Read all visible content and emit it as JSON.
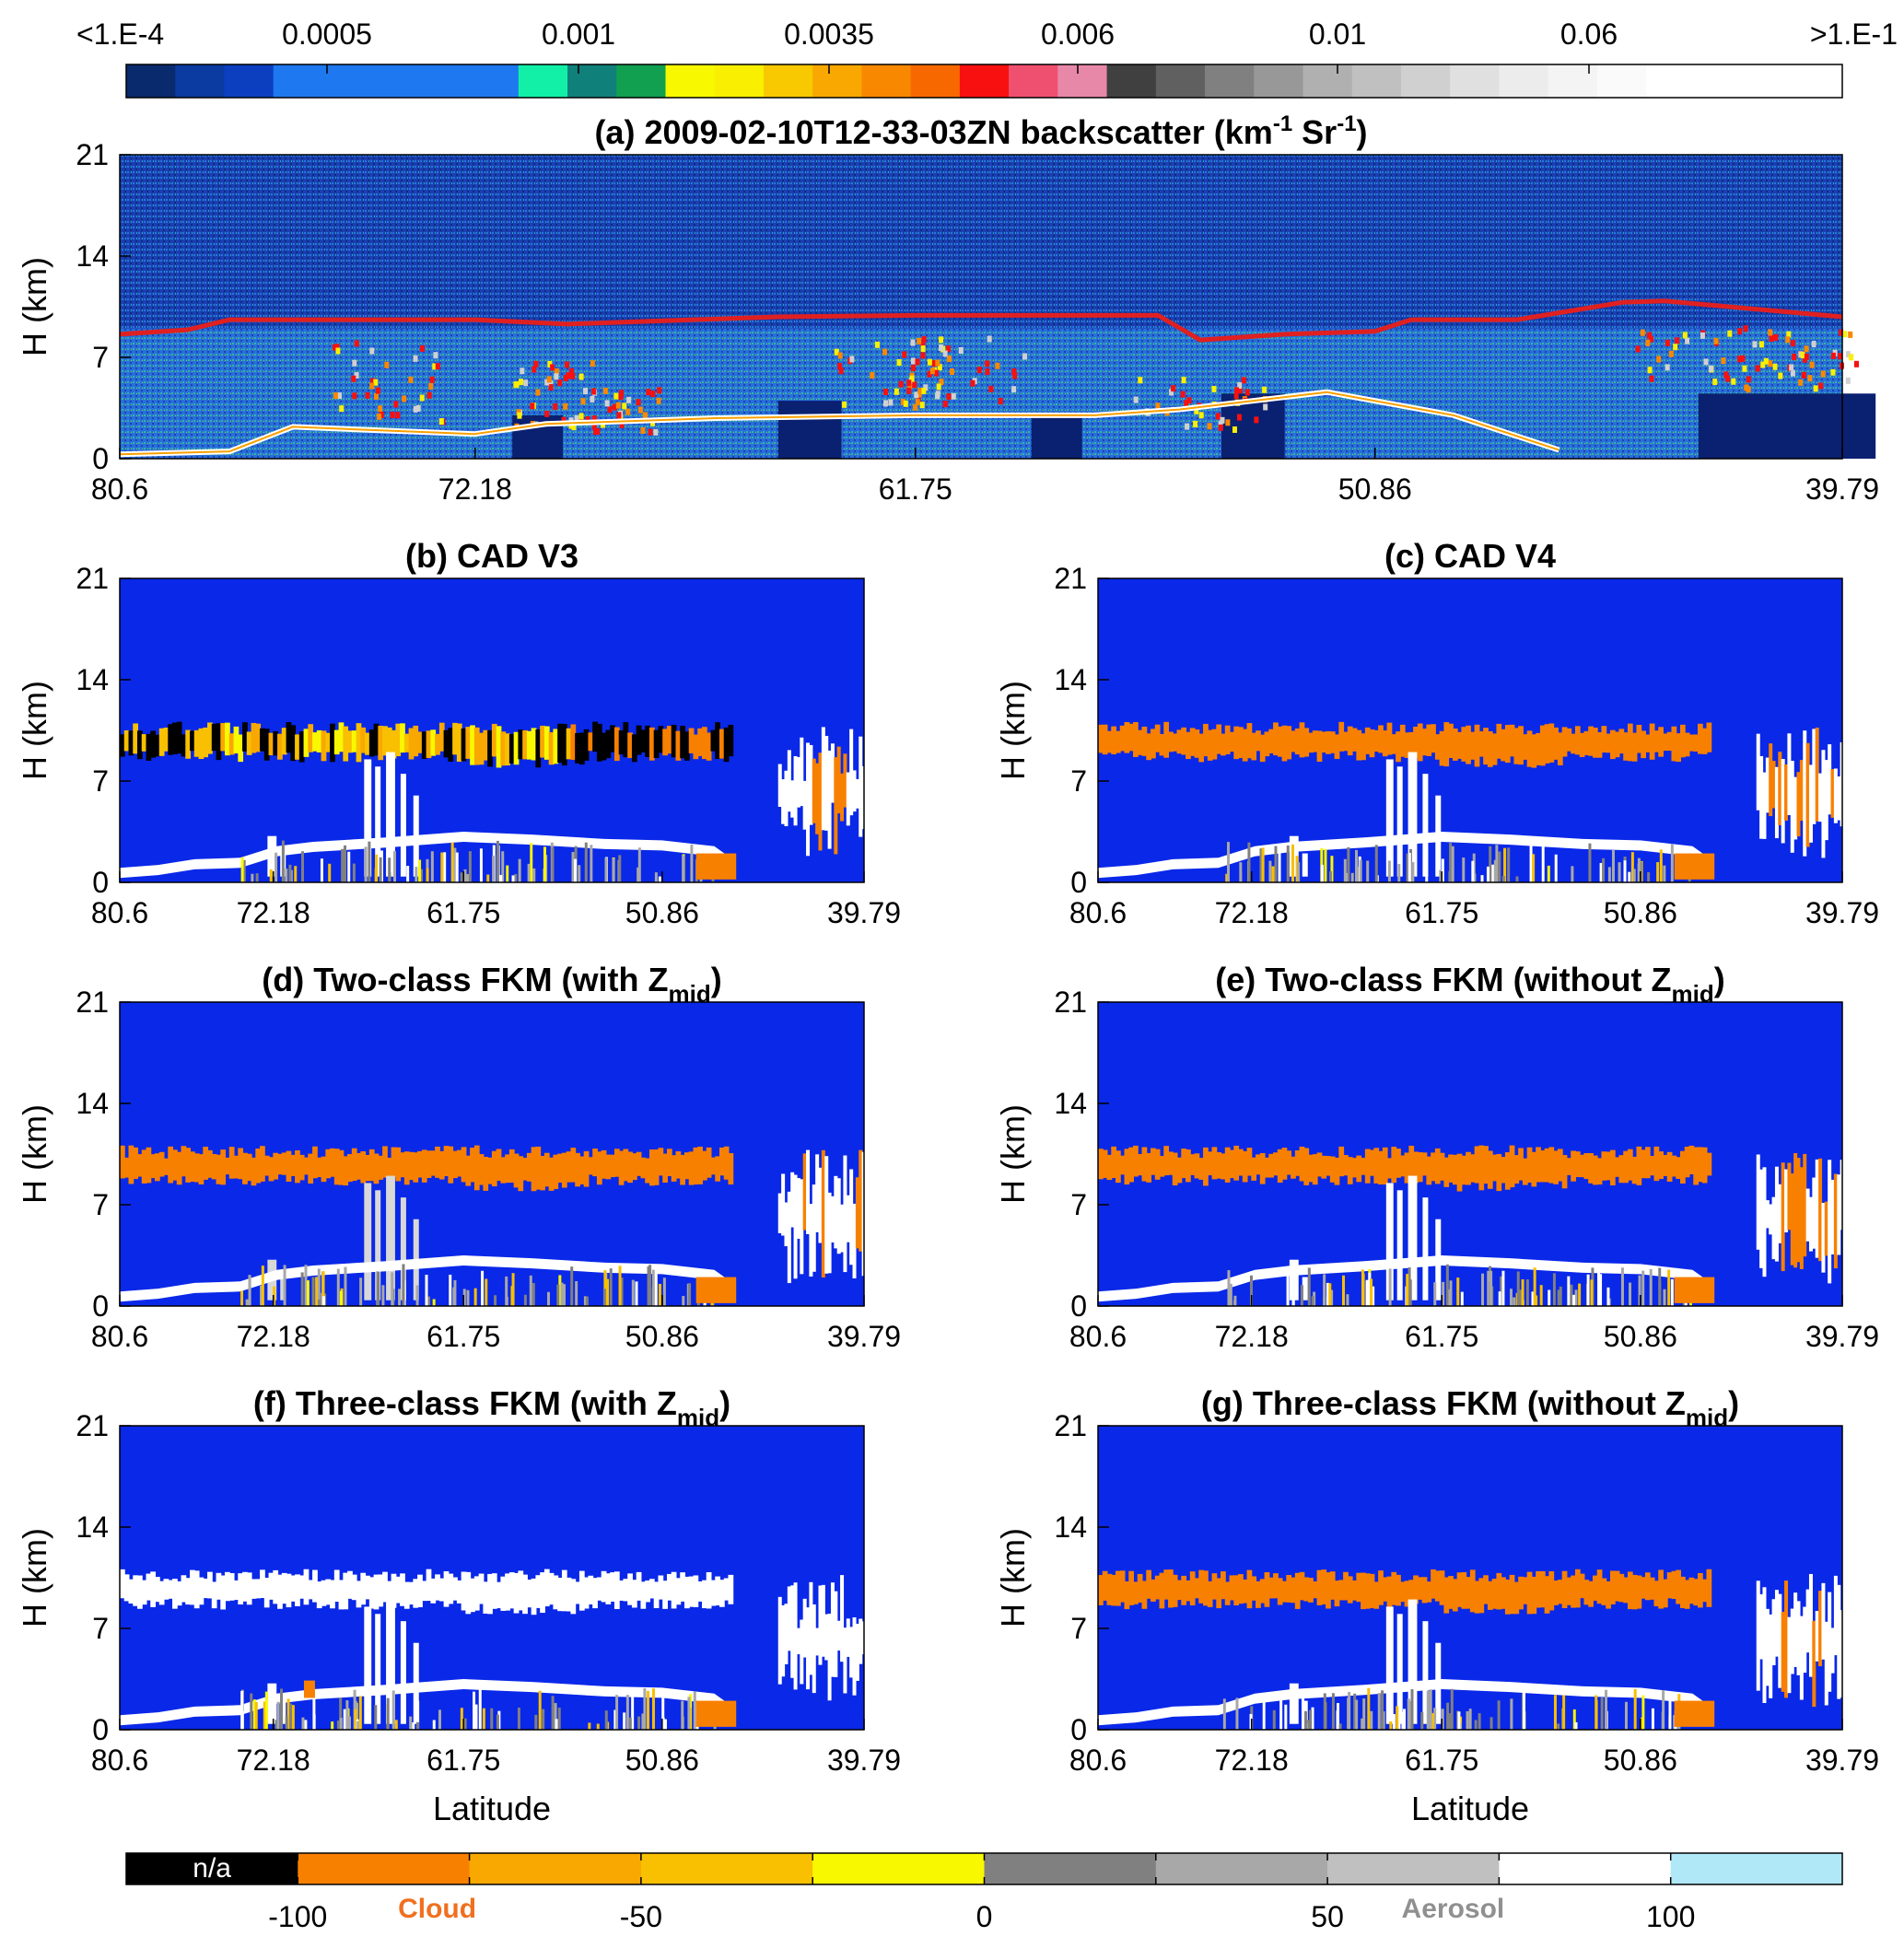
{
  "top_colorbar": {
    "labels": [
      "<1.E-4",
      "0.0005",
      "0.001",
      "0.0035",
      "0.006",
      "0.01",
      "0.06",
      ">1.E-1"
    ],
    "colors": [
      "#0a2a6e",
      "#0b3aa0",
      "#0b3fc0",
      "#1e78f0",
      "#1e78f0",
      "#1e78f0",
      "#1e78f0",
      "#1e78f0",
      "#12f0a8",
      "#10807a",
      "#10a050",
      "#f8f800",
      "#f8f000",
      "#f8c800",
      "#f8a800",
      "#f88800",
      "#f86800",
      "#f81010",
      "#f05070",
      "#e888a8",
      "#404040",
      "#606060",
      "#808080",
      "#989898",
      "#b0b0b0",
      "#c0c0c0",
      "#d0d0d0",
      "#e0e0e0",
      "#ececec",
      "#f4f4f4",
      "#fafafa",
      "#ffffff",
      "#ffffff",
      "#ffffff",
      "#ffffff"
    ]
  },
  "panels": [
    {
      "id": "a",
      "title": "(a) 2009-02-10T12-33-03ZN  backscatter (km",
      "title_sup": "-1",
      "title_mid": " Sr",
      "title_sup2": "-1",
      "title_end": ")",
      "ylabel": "H (km)",
      "yticks": [
        "0",
        "7",
        "14",
        "21"
      ],
      "xticks": [
        "80.6",
        "72.18",
        "61.75",
        "50.86",
        "39.79"
      ],
      "xlabel": ""
    },
    {
      "id": "b",
      "title": "(b) CAD V3",
      "ylabel": "H (km)",
      "yticks": [
        "0",
        "7",
        "14",
        "21"
      ],
      "xticks": [
        "80.6",
        "72.18",
        "61.75",
        "50.86",
        "39.79"
      ],
      "xlabel": ""
    },
    {
      "id": "c",
      "title": "(c) CAD V4",
      "ylabel": "H (km)",
      "yticks": [
        "0",
        "7",
        "14",
        "21"
      ],
      "xticks": [
        "80.6",
        "72.18",
        "61.75",
        "50.86",
        "39.79"
      ],
      "xlabel": ""
    },
    {
      "id": "d",
      "title": "(d) Two-class FKM  (with Z",
      "title_sub": "mid",
      "title_end": ")",
      "ylabel": "H (km)",
      "yticks": [
        "0",
        "7",
        "14",
        "21"
      ],
      "xticks": [
        "80.6",
        "72.18",
        "61.75",
        "50.86",
        "39.79"
      ],
      "xlabel": ""
    },
    {
      "id": "e",
      "title": "(e) Two-class FKM  (without Z",
      "title_sub": "mid",
      "title_end": ")",
      "ylabel": "H (km)",
      "yticks": [
        "0",
        "7",
        "14",
        "21"
      ],
      "xticks": [
        "80.6",
        "72.18",
        "61.75",
        "50.86",
        "39.79"
      ],
      "xlabel": ""
    },
    {
      "id": "f",
      "title": "(f) Three-class FKM (with Z",
      "title_sub": "mid",
      "title_end": ")",
      "ylabel": "H (km)",
      "yticks": [
        "0",
        "7",
        "14",
        "21"
      ],
      "xticks": [
        "80.6",
        "72.18",
        "61.75",
        "50.86",
        "39.79"
      ],
      "xlabel": "Latitude"
    },
    {
      "id": "g",
      "title": "(g) Three-class FKM  (without Z",
      "title_sub": "mid",
      "title_end": ")",
      "ylabel": "H (km)",
      "yticks": [
        "0",
        "7",
        "14",
        "21"
      ],
      "xticks": [
        "80.6",
        "72.18",
        "61.75",
        "50.86",
        "39.79"
      ],
      "xlabel": "Latitude"
    }
  ],
  "bottom_colorbar": {
    "na_label": "n/a",
    "tick_labels": [
      "-100",
      "-50",
      "0",
      "50",
      "100"
    ],
    "category_labels": {
      "cloud": "Cloud",
      "aerosol": "Aerosol"
    },
    "colors": {
      "na": "#000000",
      "cloud_strong": "#f88000",
      "cloud_mid": "#f8a800",
      "cloud_weak": "#f8c000",
      "cloud_edge": "#f8f800",
      "aerosol_low": "#808080",
      "aerosol_mid": "#a8a8a8",
      "aerosol_high": "#c0c0c0",
      "aerosol_max": "#ffffff",
      "clear_air": "#b0e8f8"
    },
    "label_colors": {
      "cloud": "#f07020",
      "aerosol": "#909090"
    }
  },
  "chart_data": [
    {
      "type": "heatmap",
      "title": "(a) 2009-02-10T12-33-03ZN backscatter (km-1 Sr-1)",
      "xlabel": "",
      "ylabel": "H (km)",
      "xlim": [
        80.6,
        39.79
      ],
      "ylim": [
        0,
        21
      ],
      "x_ticks": [
        80.6,
        72.18,
        61.75,
        50.86,
        39.79
      ],
      "y_ticks": [
        0,
        7,
        14,
        21
      ],
      "colorbar_ticks": [
        "<1.E-4",
        "0.0005",
        "0.001",
        "0.0035",
        "0.006",
        "0.01",
        "0.06",
        ">1.E-1"
      ],
      "overlay_line": {
        "color": "#e02020",
        "x": [
          80.6,
          79.0,
          78.0,
          72.18,
          70.0,
          65.0,
          61.75,
          56.0,
          55.0,
          53.0,
          50.86,
          50.0,
          47.5,
          45.0,
          44.0,
          39.79
        ],
        "y": [
          8.6,
          8.9,
          9.6,
          9.6,
          9.3,
          9.8,
          9.9,
          9.9,
          8.2,
          8.6,
          8.8,
          9.6,
          9.6,
          10.8,
          10.9,
          9.8
        ]
      }
    },
    {
      "type": "heatmap",
      "title": "(b) CAD V3",
      "xlabel": "",
      "ylabel": "H (km)",
      "xlim": [
        80.6,
        39.79
      ],
      "ylim": [
        0,
        21
      ]
    },
    {
      "type": "heatmap",
      "title": "(c) CAD V4",
      "xlabel": "",
      "ylabel": "H (km)",
      "xlim": [
        80.6,
        39.79
      ],
      "ylim": [
        0,
        21
      ]
    },
    {
      "type": "heatmap",
      "title": "(d) Two-class FKM (with Zmid)",
      "xlabel": "",
      "ylabel": "H (km)",
      "xlim": [
        80.6,
        39.79
      ],
      "ylim": [
        0,
        21
      ]
    },
    {
      "type": "heatmap",
      "title": "(e) Two-class FKM (without Zmid)",
      "xlabel": "",
      "ylabel": "H (km)",
      "xlim": [
        80.6,
        39.79
      ],
      "ylim": [
        0,
        21
      ]
    },
    {
      "type": "heatmap",
      "title": "(f) Three-class FKM (with Zmid)",
      "xlabel": "Latitude",
      "ylabel": "H (km)",
      "xlim": [
        80.6,
        39.79
      ],
      "ylim": [
        0,
        21
      ]
    },
    {
      "type": "heatmap",
      "title": "(g) Three-class FKM (without Zmid)",
      "xlabel": "Latitude",
      "ylabel": "H (km)",
      "xlim": [
        80.6,
        39.79
      ],
      "ylim": [
        0,
        21
      ]
    }
  ]
}
